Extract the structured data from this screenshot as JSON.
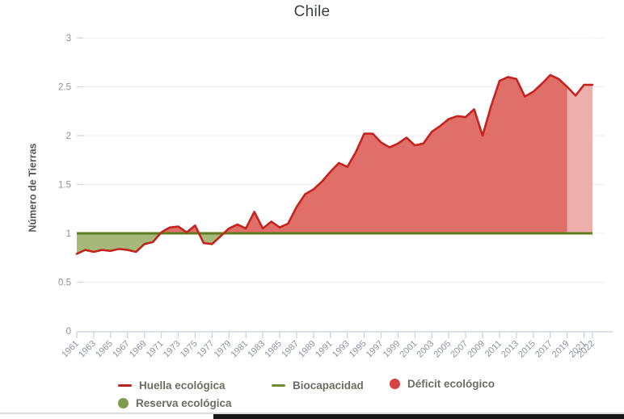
{
  "title": "Chile",
  "y_axis": {
    "label": "Número de Tierras",
    "ticks": [
      0,
      0.5,
      1,
      1.5,
      2,
      2.5,
      3
    ]
  },
  "x_axis": {
    "tick_labels": [
      "1961",
      "1963",
      "1965",
      "1967",
      "1969",
      "1971",
      "1973",
      "1975",
      "1977",
      "1979",
      "1981",
      "1983",
      "1985",
      "1987",
      "1989",
      "1991",
      "1993",
      "1995",
      "1997",
      "1999",
      "2001",
      "2003",
      "2005",
      "2007",
      "2009",
      "2011",
      "2013",
      "2015",
      "2017",
      "2019",
      "2021",
      "2022"
    ]
  },
  "legend": [
    {
      "label": "Huella ecológica",
      "swatch": "line",
      "color": "#b3251f"
    },
    {
      "label": "Biocapacidad",
      "swatch": "line",
      "color": "#6e8b2f"
    },
    {
      "label": "Déficit ecológico",
      "swatch": "dot",
      "color": "#d64141"
    },
    {
      "label": "Reserva ecológica",
      "swatch": "dot",
      "color": "#7d9a4e"
    }
  ],
  "colors": {
    "footprint_line": "#c5231e",
    "biocapacity_line": "#5e7d20",
    "deficit_fill": "#e06e69",
    "reserve_fill": "#a6b87a",
    "projection_overlay": "rgba(255,255,255,0.45)",
    "axis": "#c7d2de",
    "gridline": "#efefef",
    "tick_text": "#8c93a0",
    "title_text": "#3c4043"
  },
  "chart_data": {
    "type": "area",
    "title": "Chile",
    "xlabel": "",
    "ylabel": "Número de Tierras",
    "ylim": [
      0,
      3
    ],
    "grid": "horizontal",
    "legend_position": "bottom",
    "x": [
      1961,
      1962,
      1963,
      1964,
      1965,
      1966,
      1967,
      1968,
      1969,
      1970,
      1971,
      1972,
      1973,
      1974,
      1975,
      1976,
      1977,
      1978,
      1979,
      1980,
      1981,
      1982,
      1983,
      1984,
      1985,
      1986,
      1987,
      1988,
      1989,
      1990,
      1991,
      1992,
      1993,
      1994,
      1995,
      1996,
      1997,
      1998,
      1999,
      2000,
      2001,
      2002,
      2003,
      2004,
      2005,
      2006,
      2007,
      2008,
      2009,
      2010,
      2011,
      2012,
      2013,
      2014,
      2015,
      2016,
      2017,
      2018,
      2019,
      2020,
      2021,
      2022
    ],
    "series": [
      {
        "name": "Huella ecológica",
        "values": [
          0.79,
          0.83,
          0.81,
          0.83,
          0.82,
          0.84,
          0.83,
          0.81,
          0.89,
          0.91,
          1.01,
          1.06,
          1.07,
          1.01,
          1.08,
          0.9,
          0.89,
          0.97,
          1.05,
          1.09,
          1.05,
          1.22,
          1.05,
          1.12,
          1.06,
          1.1,
          1.27,
          1.4,
          1.45,
          1.53,
          1.63,
          1.72,
          1.68,
          1.83,
          2.02,
          2.02,
          1.93,
          1.88,
          1.92,
          1.98,
          1.9,
          1.92,
          2.04,
          2.1,
          2.17,
          2.2,
          2.19,
          2.27,
          2.0,
          2.3,
          2.56,
          2.6,
          2.58,
          2.4,
          2.45,
          2.53,
          2.62,
          2.58,
          2.5,
          2.41,
          2.52,
          2.52
        ]
      },
      {
        "name": "Biocapacidad",
        "constant": 1.0
      }
    ],
    "areas": [
      {
        "name": "Déficit ecológico",
        "rule": "footprint_above_biocapacity"
      },
      {
        "name": "Reserva ecológica",
        "rule": "footprint_below_biocapacity"
      }
    ],
    "projection": {
      "start_x": 2019
    }
  }
}
